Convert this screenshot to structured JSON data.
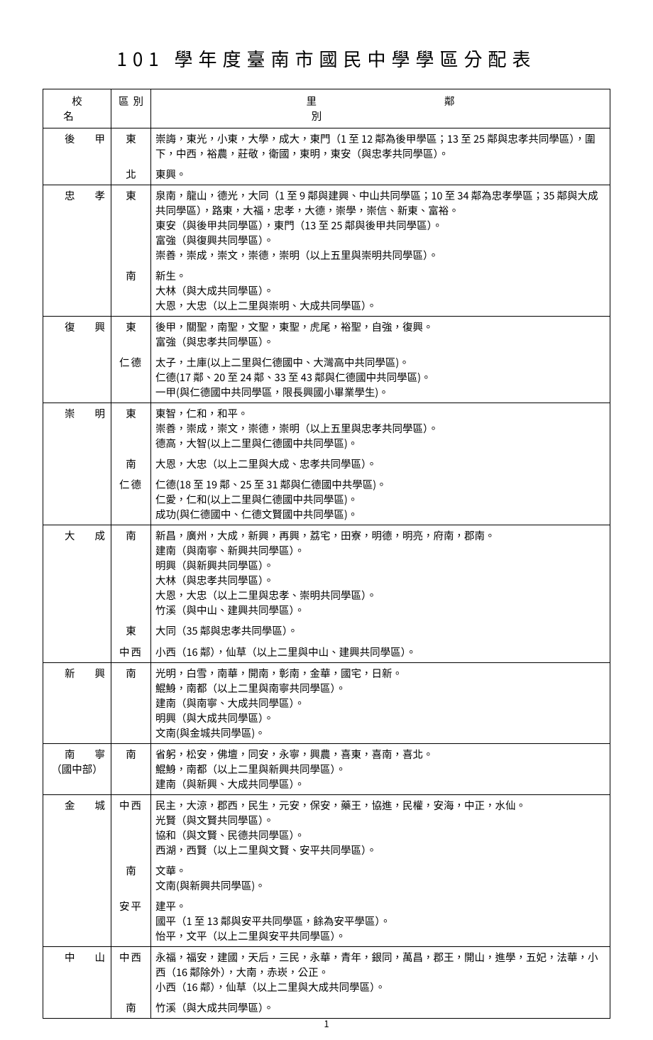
{
  "page_title": "101 學年度臺南市國民中學學區分配表",
  "page_number": "1",
  "columns": {
    "school": "校名",
    "zone": "區別",
    "desc": "里鄰別"
  },
  "schools": [
    {
      "name": "後甲",
      "zones": [
        {
          "zone": "東",
          "desc": "崇誨，東光，小東，大學，成大，東門（1 至 12 鄰為後甲學區；13 至 25 鄰與忠孝共同學區），圍下，中西，裕農，莊敬，衛國，東明，東安（與忠孝共同學區）。"
        },
        {
          "zone": "北",
          "desc": "東興。"
        }
      ]
    },
    {
      "name": "忠孝",
      "zones": [
        {
          "zone": "東",
          "desc": "泉南，龍山，德光，大同（1 至 9 鄰與建興、中山共同學區；10 至 34 鄰為忠孝學區；35 鄰與大成共同學區），路東，大福，忠孝，大德，崇學，崇信、新東、富裕。\n東安（與後甲共同學區），東門（13 至 25 鄰與後甲共同學區）。\n富強（與復興共同學區）。\n崇善，崇成，崇文，崇德，崇明（以上五里與崇明共同學區）。"
        },
        {
          "zone": "南",
          "desc": "新生。\n大林（與大成共同學區）。\n大恩，大忠（以上二里與崇明、大成共同學區）。"
        }
      ]
    },
    {
      "name": "復興",
      "zones": [
        {
          "zone": "東",
          "desc": "後甲，關聖，南聖，文聖，東聖，虎尾，裕聖，自強，復興。\n富強（與忠孝共同學區）。"
        },
        {
          "zone": "仁德",
          "desc": "太子，土庫(以上二里與仁德國中、大灣高中共同學區)。\n仁德(17 鄰、20 至 24 鄰、33 至 43 鄰與仁德國中共同學區)。\n一甲(與仁德國中共同學區，限長興國小畢業學生)。"
        }
      ]
    },
    {
      "name": "崇明",
      "zones": [
        {
          "zone": "東",
          "desc": "東智，仁和，和平。\n崇善，崇成，崇文，崇德，崇明（以上五里與忠孝共同學區）。\n德高，大智(以上二里與仁德國中共同學區)。"
        },
        {
          "zone": "南",
          "desc": "大恩，大忠（以上二里與大成、忠孝共同學區）。"
        },
        {
          "zone": "仁德",
          "desc": "仁德(18 至 19 鄰、25 至 31 鄰與仁德國中共學區)。\n仁愛，仁和(以上二里與仁德國中共同學區)。\n成功(與仁德國中、仁德文賢國中共同學區)。"
        }
      ]
    },
    {
      "name": "大成",
      "zones": [
        {
          "zone": "南",
          "desc": "新昌，廣州，大成，新興，再興，荔宅，田寮，明德，明亮，府南，郡南。\n建南（與南寧、新興共同學區）。\n明興（與新興共同學區）。\n大林（與忠孝共同學區）。\n大恩，大忠（以上二里與忠孝、崇明共同學區）。\n竹溪（與中山、建興共同學區）。"
        },
        {
          "zone": "東",
          "desc": "大同（35 鄰與忠孝共同學區）。"
        },
        {
          "zone": "中西",
          "desc": "小西（16 鄰），仙草（以上二里與中山、建興共同學區）。"
        }
      ]
    },
    {
      "name": "新興",
      "zones": [
        {
          "zone": "南",
          "desc": "光明，白雪，南華，開南，彰南，金華，國宅，日新。\n鯤鯓，南都（以上二里與南寧共同學區）。\n建南（與南寧、大成共同學區）。\n明興（與大成共同學區）。\n文南(與金城共同學區)。"
        }
      ]
    },
    {
      "name": "南寧",
      "sub": "（國中部）",
      "zones": [
        {
          "zone": "南",
          "desc": "省躬，松安，佛壇，同安，永寧，興農，喜東，喜南，喜北。\n鯤鯓，南都（以上二里與新興共同學區）。\n建南（與新興、大成共同學區）。"
        }
      ]
    },
    {
      "name": "金城",
      "zones": [
        {
          "zone": "中西",
          "desc": "民主，大涼，郡西，民生，元安，保安，藥王，協進，民權，安海，中正，水仙。\n光賢（與文賢共同學區）。\n協和（與文賢、民德共同學區）。\n西湖，西賢（以上二里與文賢、安平共同學區）。"
        },
        {
          "zone": "南",
          "desc": "文華。\n文南(與新興共同學區)。"
        },
        {
          "zone": "安平",
          "desc": "建平。\n國平（1 至 13 鄰與安平共同學區，餘為安平學區）。\n怡平，文平（以上二里與安平共同學區）。"
        }
      ]
    },
    {
      "name": "中山",
      "zones": [
        {
          "zone": "中西",
          "desc": "永福，福安，建國，天后，三民，永華，青年，銀同，萬昌，郡王，開山，進學，五妃，法華，小西（16 鄰除外），大南，赤崁，公正。\n小西（16 鄰），仙草（以上二里與大成共同學區）。"
        },
        {
          "zone": "南",
          "desc": "竹溪（與大成共同學區）。"
        }
      ]
    }
  ]
}
